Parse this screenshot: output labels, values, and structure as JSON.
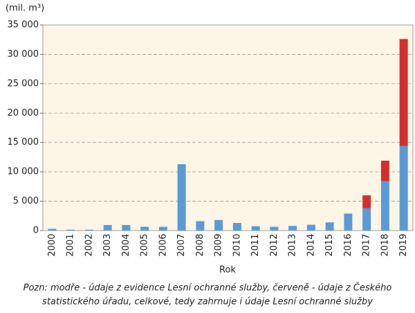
{
  "chart_data": {
    "type": "bar",
    "stacked": true,
    "y_axis_label": "(mil. m³)",
    "x_axis_label": "Rok",
    "note": [
      "Pozn: modře - údaje z evidence Lesní ochranné služby, červeně - údaje z Českého",
      "statistického úřadu, celkové, tedy zahrnuje i údaje Lesní ochranné služby"
    ],
    "categories": [
      "2000",
      "2001",
      "2002",
      "2003",
      "2004",
      "2005",
      "2006",
      "2007",
      "2008",
      "2009",
      "2010",
      "2011",
      "2012",
      "2013",
      "2014",
      "2015",
      "2016",
      "2017",
      "2018",
      "2019"
    ],
    "series": [
      {
        "color": "#5b9bd5",
        "values": [
          300,
          150,
          150,
          950,
          950,
          650,
          650,
          11300,
          1600,
          1800,
          1300,
          750,
          650,
          800,
          1000,
          1400,
          2900,
          3800,
          8400,
          14400
        ]
      },
      {
        "color": "#d0312d",
        "values": [
          null,
          null,
          null,
          null,
          null,
          null,
          null,
          null,
          null,
          null,
          null,
          null,
          null,
          null,
          null,
          null,
          null,
          2200,
          3500,
          18200
        ]
      }
    ],
    "ylim": [
      0,
      35000
    ],
    "yticks": [
      {
        "value": 0,
        "label": "0"
      },
      {
        "value": 5000,
        "label": "5 000"
      },
      {
        "value": 10000,
        "label": "10 000"
      },
      {
        "value": 15000,
        "label": "15 000"
      },
      {
        "value": 20000,
        "label": "20 000"
      },
      {
        "value": 25000,
        "label": "25 000"
      },
      {
        "value": 30000,
        "label": "30 000"
      },
      {
        "value": 35000,
        "label": "35 000"
      }
    ],
    "grid": true,
    "plot_background": "#fdf5e6"
  }
}
